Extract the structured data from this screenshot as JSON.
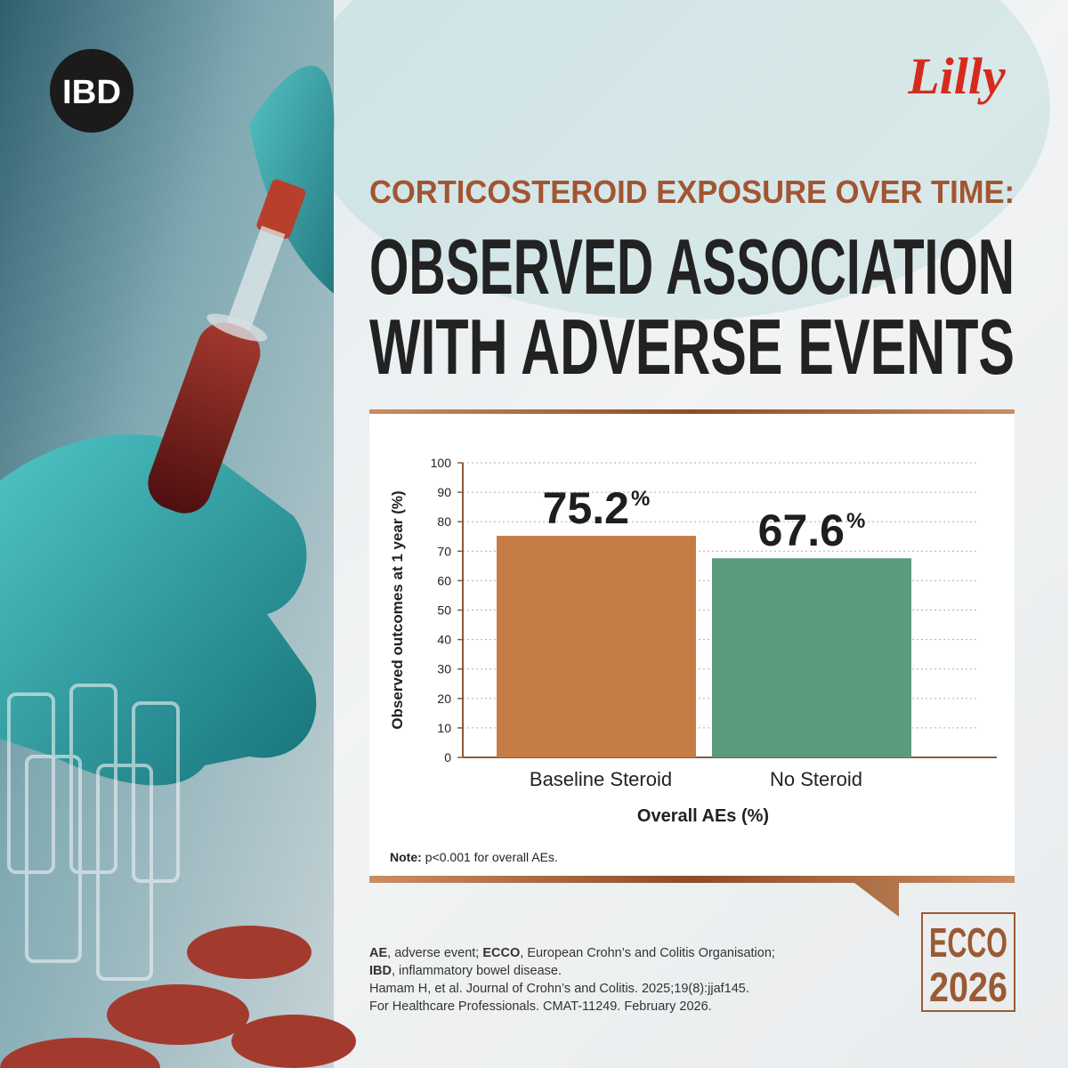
{
  "badge": "IBD",
  "logo": "Lilly",
  "headline": {
    "kicker": "CORTICOSTEROID EXPOSURE OVER TIME:",
    "title_lines": [
      "OBSERVED ASSOCIATION",
      "WITH ADVERSE EVENTS"
    ]
  },
  "chart_data": {
    "type": "bar",
    "categories": [
      "Baseline Steroid",
      "No Steroid"
    ],
    "values": [
      75.2,
      67.6
    ],
    "value_labels": [
      "75.2%",
      "67.6%"
    ],
    "colors": [
      "#c67d45",
      "#5b9a7c"
    ],
    "ylim": [
      0,
      100
    ],
    "yticks": [
      0,
      10,
      20,
      30,
      40,
      50,
      60,
      70,
      80,
      90,
      100
    ],
    "grid": true,
    "y_label": "Observed outcomes at 1 year (%)",
    "x_label": "Overall AEs (%)",
    "note_label": "Note:",
    "note": "p<0.001 for overall AEs."
  },
  "footnotes": {
    "abbreviation_lines": [
      [
        {
          "term": "AE",
          "rest": ", adverse event; "
        },
        {
          "term": "ECCO",
          "rest": ", European Crohn’s and Colitis Organisation;"
        }
      ],
      [
        {
          "term": "IBD",
          "rest": ", inflammatory bowel disease."
        }
      ]
    ],
    "references": [
      "Hamam H, et al. Journal of Crohn’s and Colitis. 2025;19(8):jjaf145.",
      "For Healthcare Professionals. CMAT-11249. February 2026."
    ]
  },
  "event": [
    "ECCO",
    "2026"
  ]
}
